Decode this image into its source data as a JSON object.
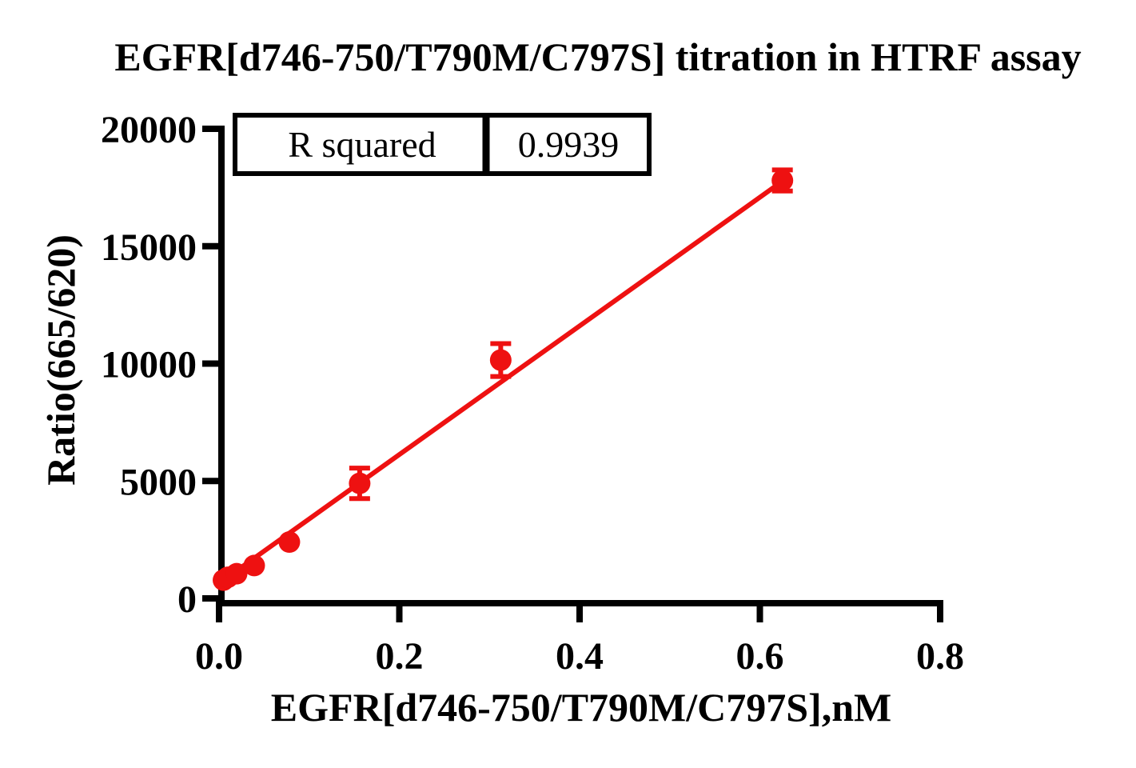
{
  "chart_data": {
    "type": "scatter",
    "title": "EGFR[d746-750/T790M/C797S] titration in HTRF assay",
    "xlabel": "EGFR[d746-750/T790M/C797S],nM",
    "ylabel": "Ratio(665/620)",
    "xlim": [
      0,
      0.8
    ],
    "ylim": [
      0,
      20000
    ],
    "xticks": [
      0.0,
      0.2,
      0.4,
      0.6,
      0.8
    ],
    "xtick_labels": [
      "0.0",
      "0.2",
      "0.4",
      "0.6",
      "0.8"
    ],
    "yticks": [
      0,
      5000,
      10000,
      15000,
      20000
    ],
    "ytick_labels": [
      "0",
      "5000",
      "10000",
      "15000",
      "20000"
    ],
    "grid": false,
    "legend": "none",
    "series": [
      {
        "name": "EGFR[d746-750/T790M/C797S] titration",
        "marker": "circle",
        "color": "#ee1111",
        "points": [
          {
            "x": 0.0049,
            "y": 780
          },
          {
            "x": 0.0098,
            "y": 900
          },
          {
            "x": 0.0195,
            "y": 1050
          },
          {
            "x": 0.039,
            "y": 1400
          },
          {
            "x": 0.078,
            "y": 2400
          },
          {
            "x": 0.156,
            "y": 4900,
            "err": 650
          },
          {
            "x": 0.3125,
            "y": 10150,
            "err": 700
          },
          {
            "x": 0.625,
            "y": 17800,
            "err": 450
          }
        ]
      }
    ],
    "trendline": {
      "x1": 0.002,
      "y1": 700,
      "x2": 0.628,
      "y2": 17850,
      "color": "#ee1111"
    },
    "annotation_table": {
      "label": "R squared",
      "value": "0.9939"
    },
    "colors": {
      "accent": "#ee1111",
      "axis": "#000000",
      "background": "#ffffff"
    }
  }
}
